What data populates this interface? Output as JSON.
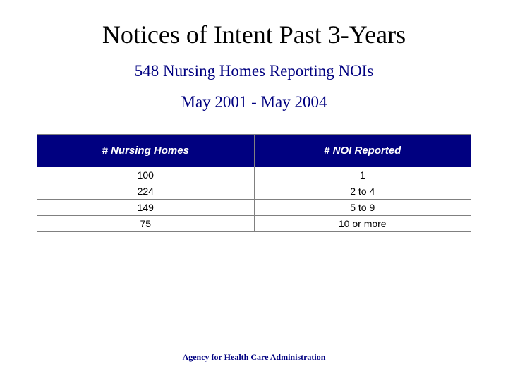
{
  "title": "Notices of Intent Past 3-Years",
  "subtitle": "548 Nursing Homes Reporting NOIs",
  "daterange": "May 2001 - May 2004",
  "table": {
    "columns": [
      "# Nursing Homes",
      "# NOI Reported"
    ],
    "rows": [
      [
        "100",
        "1"
      ],
      [
        "224",
        "2 to 4"
      ],
      [
        "149",
        "5 to 9"
      ],
      [
        "75",
        "10 or more"
      ]
    ],
    "header_bg": "#000080",
    "header_color": "#ffffff",
    "header_fontsize": 15,
    "cell_bg": "#ffffff",
    "cell_color": "#000000",
    "cell_fontsize": 14,
    "border_color": "#808080"
  },
  "footer": "Agency for Health Care Administration",
  "colors": {
    "background": "#ffffff",
    "title_color": "#000000",
    "subtitle_color": "#000080",
    "footer_color": "#000080"
  }
}
